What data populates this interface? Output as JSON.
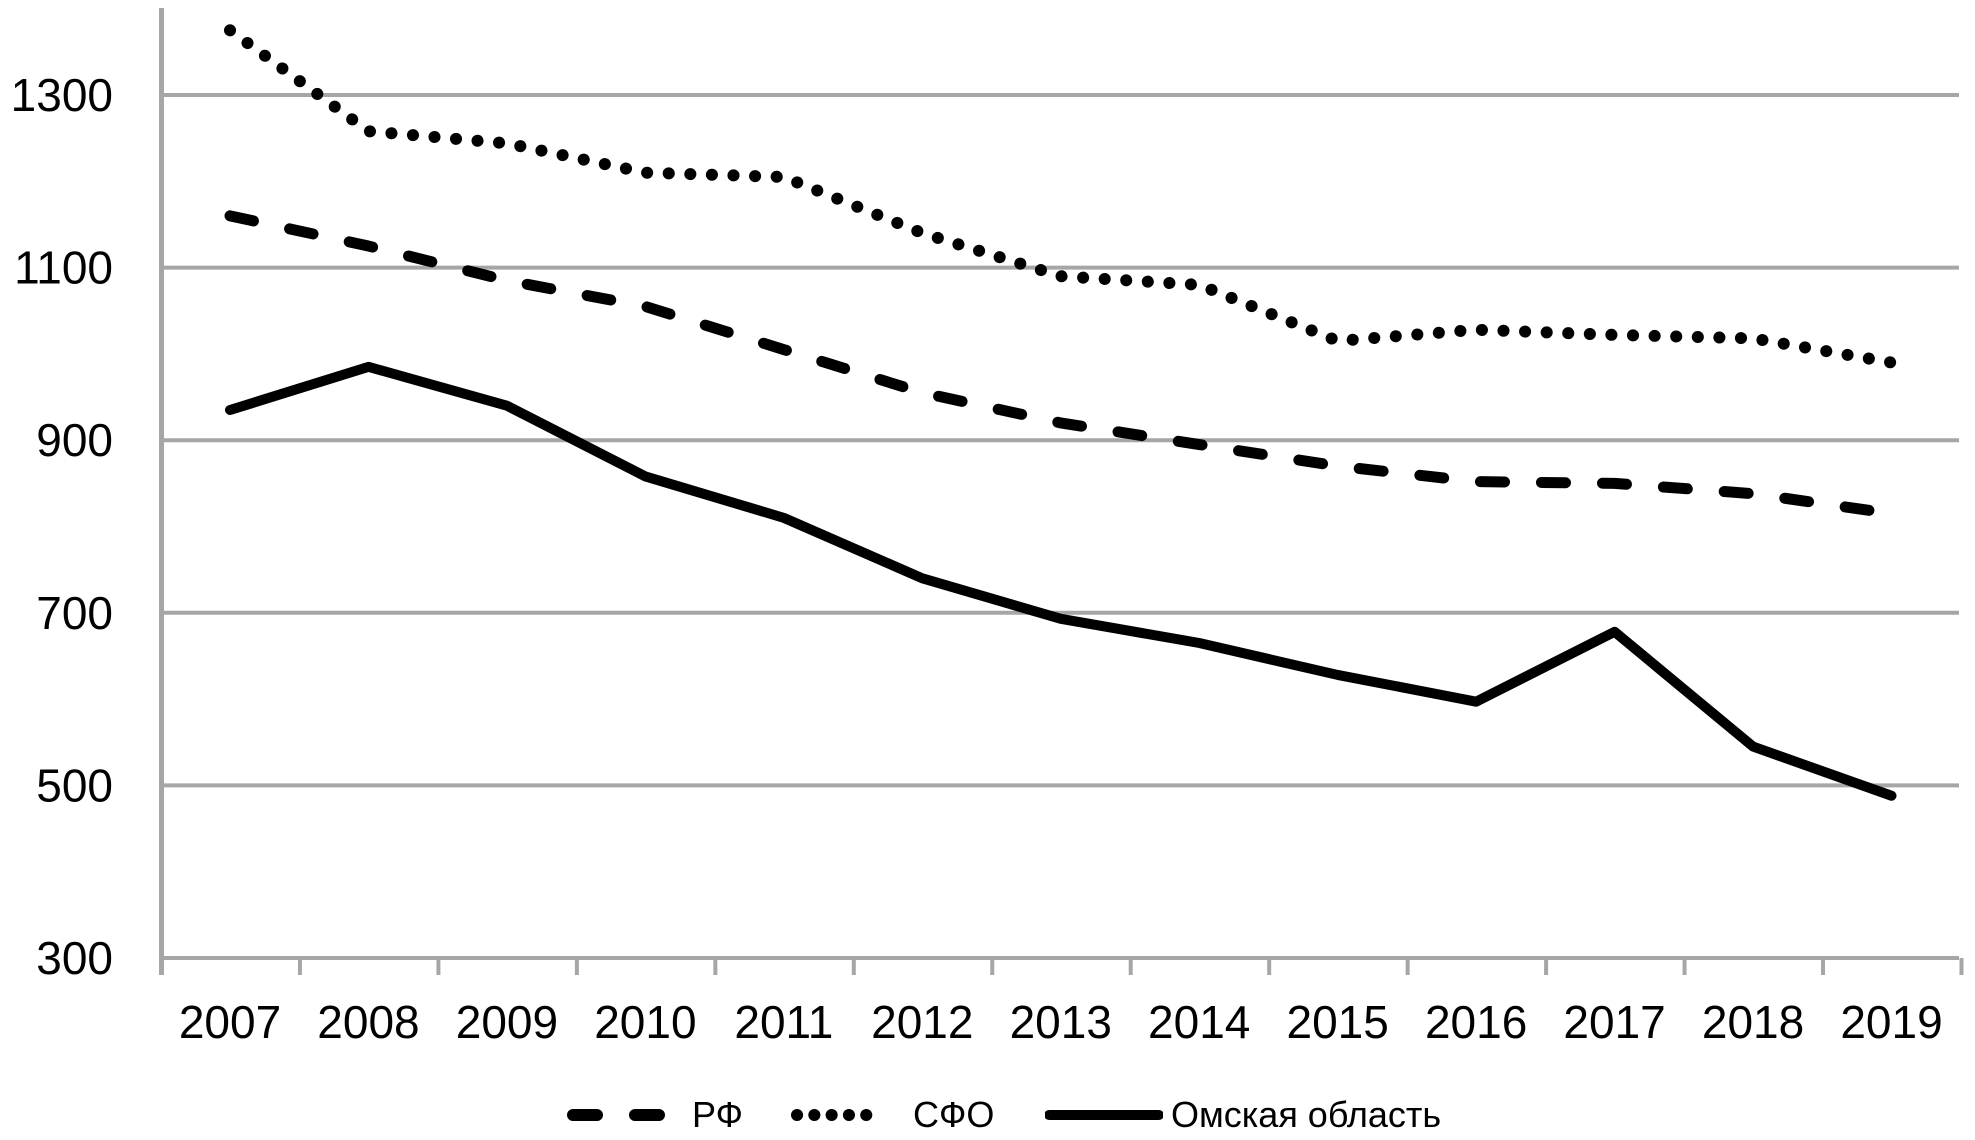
{
  "chart_data": {
    "type": "line",
    "title": "",
    "xlabel": "",
    "ylabel": "",
    "categories": [
      2007,
      2008,
      2009,
      2010,
      2011,
      2012,
      2013,
      2014,
      2015,
      2016,
      2017,
      2018,
      2019
    ],
    "series": [
      {
        "name": "РФ",
        "style": "dashed",
        "color": "#000000",
        "values": [
          1160,
          1125,
          1085,
          1055,
          1005,
          955,
          920,
          895,
          870,
          852,
          850,
          838,
          815
        ]
      },
      {
        "name": "СФО",
        "style": "dotted",
        "color": "#000000",
        "values": [
          1375,
          1258,
          1244,
          1210,
          1205,
          1140,
          1090,
          1080,
          1015,
          1028,
          1022,
          1018,
          990
        ]
      },
      {
        "name": "Омская область",
        "style": "solid",
        "color": "#000000",
        "values": [
          935,
          985,
          940,
          858,
          810,
          740,
          693,
          665,
          628,
          597,
          678,
          545,
          488
        ]
      }
    ],
    "y_axis": {
      "min": 300,
      "max": 1400,
      "ticks": [
        300,
        500,
        700,
        900,
        1100,
        1300
      ]
    },
    "grid": true,
    "legend_position": "bottom",
    "gridline_color": "#a6a6a6",
    "axis_color": "#a6a6a6",
    "text_color": "#000000",
    "background": "#ffffff"
  }
}
